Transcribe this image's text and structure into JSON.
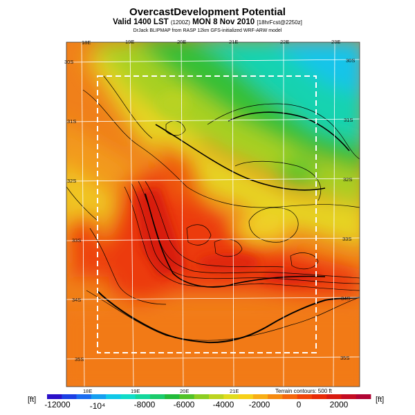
{
  "title": "OvercastDevelopment Potential",
  "subtitle": {
    "prefix": "Valid 1400 LST",
    "utc": "(1200Z)",
    "date": "MON 8 Nov 2010",
    "fcst": "[18hrFcst@2250z]"
  },
  "credit": "DrJack BLIPMAP from RASP 12km GFS-initialized WRF-ARW model",
  "map": {
    "top_lon_labels": [
      "18E",
      "19E",
      "20E",
      "21E",
      "22E",
      "23E"
    ],
    "bottom_lon_labels": [
      "18E",
      "19E",
      "20E",
      "21E"
    ],
    "left_lat_labels": [
      "30S",
      "31S",
      "32S",
      "33S",
      "34S",
      "35S"
    ],
    "right_lat_labels": [
      "30S",
      "31S",
      "32S",
      "33S",
      "34S",
      "35S"
    ],
    "terrain_note": "Terrain contours: 500 ft"
  },
  "colorbar": {
    "unit_left": "[ft]",
    "unit_right": "[ft]",
    "ticks": [
      "-12000",
      "-10⁴",
      "-8000",
      "-6000",
      "-4000",
      "-2000",
      "0",
      "2000"
    ],
    "colors": [
      "#2a10c8",
      "#1c3fe4",
      "#1a6cf0",
      "#159ff0",
      "#10c8e8",
      "#10dcc8",
      "#12d79c",
      "#1acb6c",
      "#22bb3a",
      "#52c228",
      "#8cce22",
      "#bcd420",
      "#e0dc1e",
      "#f6d018",
      "#f8ae14",
      "#f68a10",
      "#f4660c",
      "#f04408",
      "#e82a06",
      "#d81a10",
      "#c40c22",
      "#b00434"
    ]
  }
}
